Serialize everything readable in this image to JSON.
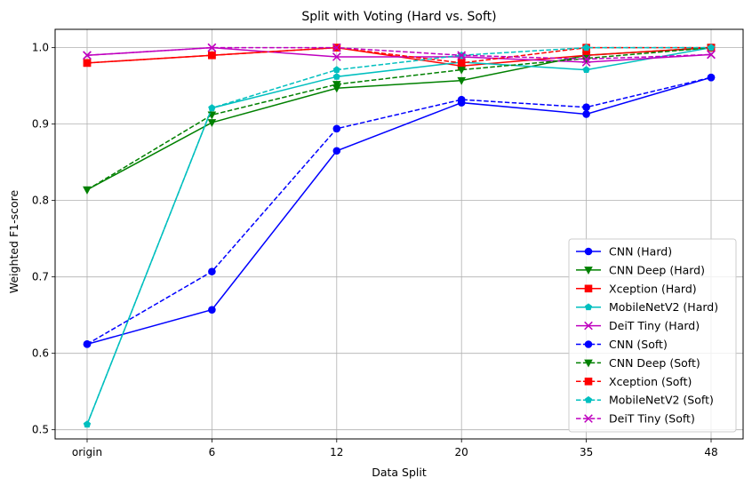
{
  "chart_data": {
    "type": "line",
    "title": "Split with Voting (Hard vs. Soft)",
    "xlabel": "Data Split",
    "ylabel": "Weighted F1-score",
    "categories": [
      "origin",
      "6",
      "12",
      "20",
      "35",
      "48"
    ],
    "ylim": [
      0.488,
      1.024
    ],
    "yticks": [
      0.5,
      0.6,
      0.7,
      0.8,
      0.9,
      1.0
    ],
    "ytick_labels": [
      "0.5",
      "0.6",
      "0.7",
      "0.8",
      "0.9",
      "1.0"
    ],
    "grid": true,
    "legend_position": "bottom-right",
    "series": [
      {
        "name": "CNN (Hard)",
        "color": "#0000ff",
        "dash": "solid",
        "marker": "circle",
        "values": [
          0.612,
          0.657,
          0.865,
          0.928,
          0.913,
          0.961
        ]
      },
      {
        "name": "CNN Deep (Hard)",
        "color": "#008000",
        "dash": "solid",
        "marker": "triangle-down",
        "values": [
          0.814,
          0.902,
          0.947,
          0.957,
          0.99,
          1.0
        ]
      },
      {
        "name": "Xception (Hard)",
        "color": "#ff0000",
        "dash": "solid",
        "marker": "square",
        "values": [
          0.98,
          0.99,
          1.0,
          0.976,
          0.99,
          1.0
        ]
      },
      {
        "name": "MobileNetV2 (Hard)",
        "color": "#00bfbf",
        "dash": "solid",
        "marker": "pentagon",
        "values": [
          0.507,
          0.921,
          0.962,
          0.981,
          0.971,
          1.0
        ]
      },
      {
        "name": "DeiT Tiny (Hard)",
        "color": "#bf00bf",
        "dash": "solid",
        "marker": "x",
        "values": [
          0.99,
          1.0,
          0.988,
          0.988,
          0.981,
          0.991
        ]
      },
      {
        "name": "CNN (Soft)",
        "color": "#0000ff",
        "dash": "dashed",
        "marker": "circle",
        "values": [
          0.612,
          0.707,
          0.894,
          0.932,
          0.922,
          0.961
        ]
      },
      {
        "name": "CNN Deep (Soft)",
        "color": "#008000",
        "dash": "dashed",
        "marker": "triangle-down",
        "values": [
          0.814,
          0.912,
          0.952,
          0.971,
          0.986,
          1.0
        ]
      },
      {
        "name": "Xception (Soft)",
        "color": "#ff0000",
        "dash": "dashed",
        "marker": "square",
        "values": [
          0.98,
          0.99,
          1.0,
          0.98,
          1.0,
          1.0
        ]
      },
      {
        "name": "MobileNetV2 (Soft)",
        "color": "#00bfbf",
        "dash": "dashed",
        "marker": "pentagon",
        "values": [
          0.507,
          0.921,
          0.971,
          0.99,
          1.0,
          1.0
        ]
      },
      {
        "name": "DeiT Tiny (Soft)",
        "color": "#bf00bf",
        "dash": "dashed",
        "marker": "x",
        "values": [
          0.99,
          1.0,
          1.0,
          0.99,
          0.985,
          0.991
        ]
      }
    ]
  }
}
